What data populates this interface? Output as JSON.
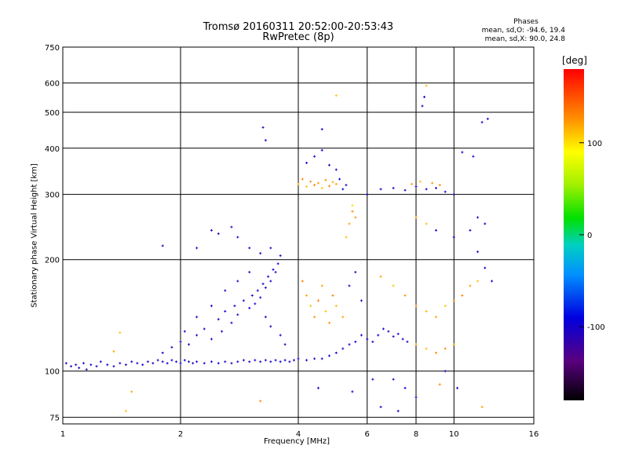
{
  "header": {
    "title": "Tromsø 20160311 20:52:00-20:53:43",
    "subtitle": "RwPretec (8p)"
  },
  "phases_box": {
    "heading": "Phases",
    "line_o": "mean, sd,O: -94.6, 19.4",
    "line_x": "mean, sd,X:  90.0, 24.8"
  },
  "colorbar": {
    "unit": "[deg]",
    "ticks": [
      {
        "label": "100",
        "value": 100
      },
      {
        "label": "0",
        "value": 0
      },
      {
        "label": "-100",
        "value": -100
      }
    ],
    "range": [
      -180,
      180
    ]
  },
  "chart_data": {
    "type": "scatter",
    "title": "Tromsø 20160311 20:52:00-20:53:43",
    "subtitle": "RwPretec (8p)",
    "xlabel": "Frequency [MHz]",
    "ylabel": "Stationary phase Virtual Height [km]",
    "x_scale": "log",
    "y_scale": "log",
    "xlim": [
      1,
      16
    ],
    "ylim": [
      72,
      750
    ],
    "x_ticks": [
      1,
      2,
      4,
      6,
      8,
      10,
      16
    ],
    "y_ticks": [
      75,
      100,
      200,
      300,
      400,
      500,
      600,
      750
    ],
    "grid": true,
    "color_encoding": "phase [deg]",
    "series": [
      {
        "points": [
          [
            1.02,
            105,
            -100
          ],
          [
            1.05,
            103,
            -105
          ],
          [
            1.08,
            104,
            -110
          ],
          [
            1.1,
            102,
            -100
          ],
          [
            1.13,
            105,
            -95
          ],
          [
            1.15,
            101,
            -110
          ],
          [
            1.18,
            104,
            -100
          ],
          [
            1.22,
            103,
            -105
          ],
          [
            1.25,
            106,
            -100
          ],
          [
            1.3,
            104,
            -95
          ],
          [
            1.35,
            103,
            -110
          ],
          [
            1.4,
            105,
            -100
          ],
          [
            1.45,
            104,
            -105
          ],
          [
            1.5,
            106,
            -100
          ],
          [
            1.55,
            105,
            -95
          ],
          [
            1.6,
            104,
            -100
          ],
          [
            1.65,
            106,
            -105
          ],
          [
            1.7,
            105,
            -100
          ],
          [
            1.75,
            107,
            -110
          ],
          [
            1.8,
            106,
            -100
          ],
          [
            1.85,
            105,
            -95
          ],
          [
            1.9,
            107,
            -100
          ],
          [
            1.95,
            106,
            -105
          ],
          [
            2.0,
            105,
            -100
          ],
          [
            2.05,
            107,
            -95
          ],
          [
            2.1,
            106,
            -100
          ],
          [
            2.15,
            105,
            -110
          ],
          [
            2.2,
            106,
            -100
          ],
          [
            2.3,
            105,
            -105
          ],
          [
            2.4,
            106,
            -100
          ],
          [
            2.5,
            105,
            -95
          ],
          [
            2.6,
            106,
            -100
          ],
          [
            2.7,
            105,
            -105
          ],
          [
            2.8,
            106,
            -100
          ],
          [
            2.9,
            107,
            -110
          ],
          [
            3.0,
            106,
            -100
          ],
          [
            3.1,
            107,
            -95
          ],
          [
            3.2,
            106,
            -100
          ],
          [
            3.3,
            107,
            -105
          ],
          [
            3.4,
            106,
            -100
          ],
          [
            3.5,
            107,
            -100
          ],
          [
            3.6,
            106,
            -95
          ],
          [
            3.7,
            107,
            -100
          ],
          [
            3.8,
            106,
            -105
          ],
          [
            3.9,
            107,
            -100
          ],
          [
            4.0,
            108,
            -100
          ],
          [
            4.2,
            107,
            -95
          ],
          [
            4.4,
            108,
            -100
          ],
          [
            1.8,
            112,
            -100
          ],
          [
            1.9,
            116,
            -105
          ],
          [
            2.0,
            120,
            -100
          ],
          [
            2.05,
            128,
            -95
          ],
          [
            2.1,
            118,
            -100
          ],
          [
            2.2,
            125,
            -105
          ],
          [
            2.3,
            130,
            -100
          ],
          [
            2.4,
            122,
            -95
          ],
          [
            2.5,
            138,
            -100
          ],
          [
            2.55,
            128,
            -105
          ],
          [
            2.6,
            145,
            -100
          ],
          [
            2.7,
            135,
            -95
          ],
          [
            2.75,
            150,
            -100
          ],
          [
            2.8,
            142,
            -105
          ],
          [
            2.9,
            155,
            -100
          ],
          [
            3.0,
            148,
            -95
          ],
          [
            3.05,
            160,
            -100
          ],
          [
            3.1,
            152,
            -105
          ],
          [
            3.15,
            165,
            -100
          ],
          [
            3.2,
            158,
            -95
          ],
          [
            3.25,
            172,
            -100
          ],
          [
            3.3,
            168,
            -105
          ],
          [
            3.35,
            180,
            -100
          ],
          [
            3.4,
            175,
            -95
          ],
          [
            3.45,
            188,
            -100
          ],
          [
            3.5,
            185,
            -105
          ],
          [
            3.55,
            195,
            -100
          ],
          [
            3.3,
            140,
            -100
          ],
          [
            3.4,
            132,
            -95
          ],
          [
            3.6,
            125,
            -100
          ],
          [
            3.7,
            118,
            -105
          ],
          [
            2.2,
            140,
            -100
          ],
          [
            2.4,
            150,
            -95
          ],
          [
            2.6,
            165,
            -100
          ],
          [
            2.8,
            175,
            -105
          ],
          [
            3.0,
            185,
            -100
          ],
          [
            2.2,
            215,
            -100
          ],
          [
            2.4,
            240,
            -95
          ],
          [
            2.5,
            235,
            -100
          ],
          [
            2.7,
            245,
            -105
          ],
          [
            2.8,
            230,
            -100
          ],
          [
            3.0,
            215,
            -95
          ],
          [
            3.2,
            208,
            -100
          ],
          [
            3.4,
            215,
            -105
          ],
          [
            3.6,
            205,
            -100
          ],
          [
            1.8,
            218,
            -100
          ],
          [
            3.25,
            455,
            -110
          ],
          [
            3.3,
            420,
            -100
          ],
          [
            4.0,
            320,
            120
          ],
          [
            4.1,
            330,
            130
          ],
          [
            4.2,
            315,
            110
          ],
          [
            4.3,
            325,
            125
          ],
          [
            4.4,
            318,
            135
          ],
          [
            4.5,
            322,
            120
          ],
          [
            4.6,
            312,
            110
          ],
          [
            4.7,
            328,
            125
          ],
          [
            4.8,
            316,
            130
          ],
          [
            4.9,
            324,
            115
          ],
          [
            5.0,
            320,
            120
          ],
          [
            5.1,
            330,
            -100
          ],
          [
            5.2,
            310,
            -95
          ],
          [
            5.3,
            318,
            -110
          ],
          [
            4.2,
            365,
            -100
          ],
          [
            4.4,
            380,
            -95
          ],
          [
            4.6,
            395,
            -100
          ],
          [
            4.8,
            360,
            -105
          ],
          [
            5.0,
            350,
            -100
          ],
          [
            4.1,
            175,
            130
          ],
          [
            4.2,
            160,
            120
          ],
          [
            4.3,
            150,
            110
          ],
          [
            4.4,
            140,
            125
          ],
          [
            4.5,
            155,
            135
          ],
          [
            4.6,
            170,
            120
          ],
          [
            4.7,
            145,
            110
          ],
          [
            4.8,
            135,
            125
          ],
          [
            4.9,
            160,
            130
          ],
          [
            5.0,
            150,
            115
          ],
          [
            5.2,
            140,
            120
          ],
          [
            5.4,
            170,
            -100
          ],
          [
            5.6,
            185,
            -95
          ],
          [
            5.8,
            155,
            -100
          ],
          [
            5.3,
            230,
            110
          ],
          [
            5.4,
            250,
            120
          ],
          [
            5.5,
            270,
            130
          ],
          [
            5.6,
            260,
            125
          ],
          [
            5.5,
            280,
            100
          ],
          [
            4.6,
            108,
            -100
          ],
          [
            4.8,
            110,
            -95
          ],
          [
            5.0,
            112,
            -100
          ],
          [
            5.2,
            115,
            -105
          ],
          [
            5.4,
            118,
            -100
          ],
          [
            5.6,
            120,
            -95
          ],
          [
            5.8,
            125,
            -100
          ],
          [
            6.0,
            122,
            -105
          ],
          [
            6.2,
            120,
            -100
          ],
          [
            6.4,
            125,
            -95
          ],
          [
            6.6,
            130,
            -100
          ],
          [
            6.8,
            128,
            -105
          ],
          [
            7.0,
            124,
            -100
          ],
          [
            7.2,
            126,
            -95
          ],
          [
            7.4,
            122,
            -100
          ],
          [
            7.6,
            120,
            -105
          ],
          [
            6.0,
            300,
            -100
          ],
          [
            6.5,
            310,
            -95
          ],
          [
            7.0,
            312,
            -100
          ],
          [
            7.5,
            308,
            -105
          ],
          [
            8.0,
            315,
            -100
          ],
          [
            8.5,
            310,
            -95
          ],
          [
            9.0,
            312,
            -100
          ],
          [
            9.5,
            305,
            -105
          ],
          [
            10.0,
            300,
            -100
          ],
          [
            7.8,
            320,
            120
          ],
          [
            8.2,
            325,
            110
          ],
          [
            8.8,
            322,
            125
          ],
          [
            9.2,
            318,
            130
          ],
          [
            6.5,
            180,
            120
          ],
          [
            7.0,
            170,
            110
          ],
          [
            7.5,
            160,
            125
          ],
          [
            8.0,
            150,
            130
          ],
          [
            8.5,
            145,
            115
          ],
          [
            9.0,
            140,
            120
          ],
          [
            9.5,
            150,
            110
          ],
          [
            10.0,
            155,
            125
          ],
          [
            10.5,
            160,
            130
          ],
          [
            11.0,
            170,
            120
          ],
          [
            11.5,
            175,
            110
          ],
          [
            8.0,
            260,
            120
          ],
          [
            8.5,
            250,
            110
          ],
          [
            9.0,
            240,
            -100
          ],
          [
            10.0,
            230,
            -95
          ],
          [
            11.0,
            240,
            -100
          ],
          [
            11.5,
            210,
            -105
          ],
          [
            12.0,
            190,
            -100
          ],
          [
            12.5,
            175,
            -95
          ],
          [
            8.0,
            118,
            120
          ],
          [
            8.5,
            115,
            110
          ],
          [
            9.0,
            112,
            125
          ],
          [
            9.5,
            115,
            130
          ],
          [
            10.0,
            118,
            115
          ],
          [
            7.0,
            95,
            -100
          ],
          [
            7.5,
            90,
            -95
          ],
          [
            8.0,
            85,
            -100
          ],
          [
            6.5,
            80,
            -105
          ],
          [
            7.2,
            78,
            -100
          ],
          [
            8.5,
            590,
            110
          ],
          [
            8.3,
            520,
            -100
          ],
          [
            8.4,
            550,
            -95
          ],
          [
            10.5,
            390,
            -100
          ],
          [
            11.2,
            380,
            -95
          ],
          [
            11.8,
            470,
            -100
          ],
          [
            12.2,
            480,
            -105
          ],
          [
            11.5,
            260,
            -100
          ],
          [
            12.0,
            250,
            -95
          ],
          [
            11.8,
            80,
            120
          ],
          [
            9.2,
            92,
            130
          ],
          [
            10.2,
            90,
            -100
          ],
          [
            4.5,
            90,
            -100
          ],
          [
            5.5,
            88,
            -95
          ],
          [
            3.2,
            83,
            130
          ],
          [
            1.5,
            88,
            120
          ],
          [
            1.45,
            78,
            110
          ],
          [
            1.4,
            127,
            110
          ],
          [
            1.35,
            113,
            120
          ],
          [
            5.0,
            555,
            110
          ],
          [
            4.6,
            450,
            -100
          ],
          [
            6.2,
            95,
            -105
          ],
          [
            9.5,
            100,
            -100
          ]
        ]
      }
    ]
  }
}
